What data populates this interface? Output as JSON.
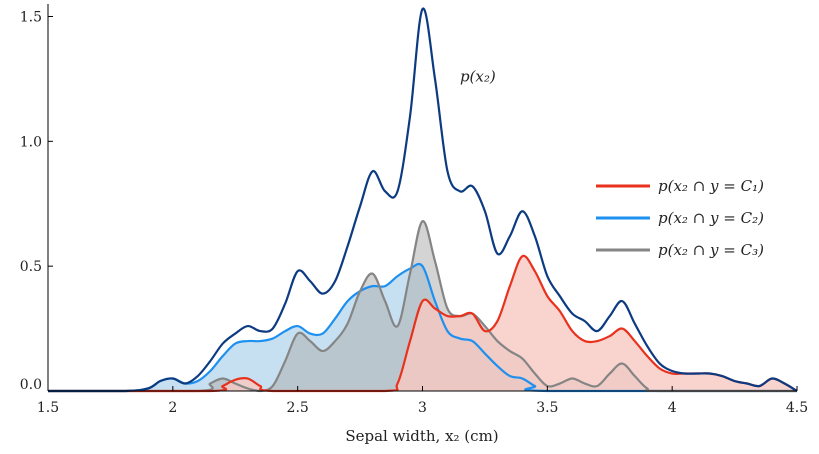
{
  "chart_data": {
    "type": "area",
    "xlabel": "Sepal width, x₂ (cm)",
    "ylabel": "",
    "xlim": [
      1.5,
      4.5
    ],
    "ylim": [
      0,
      1.55
    ],
    "xticks": [
      1.5,
      2,
      2.5,
      3,
      3.5,
      4,
      4.5
    ],
    "xtick_labels": [
      "1.5",
      "2",
      "2.5",
      "3",
      "3.5",
      "4",
      "4.5"
    ],
    "yticks": [
      0.0,
      0.5,
      1.0,
      1.5
    ],
    "ytick_labels": [
      "0.0",
      "0.5",
      "1.0",
      "1.5"
    ],
    "grid": false,
    "legend_position": "right",
    "annotation": {
      "text": "p(x₂)",
      "x": 3.15,
      "y": 1.24
    },
    "series": [
      {
        "name": "p(x₂)",
        "color": "#0d3b82",
        "filled": false,
        "points": [
          [
            1.5,
            0
          ],
          [
            1.8,
            0
          ],
          [
            1.9,
            0.01
          ],
          [
            1.95,
            0.04
          ],
          [
            2.0,
            0.05
          ],
          [
            2.05,
            0.03
          ],
          [
            2.1,
            0.06
          ],
          [
            2.15,
            0.12
          ],
          [
            2.2,
            0.19
          ],
          [
            2.25,
            0.23
          ],
          [
            2.3,
            0.26
          ],
          [
            2.35,
            0.24
          ],
          [
            2.4,
            0.25
          ],
          [
            2.45,
            0.35
          ],
          [
            2.5,
            0.48
          ],
          [
            2.55,
            0.44
          ],
          [
            2.6,
            0.39
          ],
          [
            2.65,
            0.44
          ],
          [
            2.7,
            0.58
          ],
          [
            2.75,
            0.74
          ],
          [
            2.8,
            0.88
          ],
          [
            2.85,
            0.8
          ],
          [
            2.9,
            0.8
          ],
          [
            2.95,
            1.1
          ],
          [
            3.0,
            1.53
          ],
          [
            3.05,
            1.25
          ],
          [
            3.1,
            0.88
          ],
          [
            3.15,
            0.8
          ],
          [
            3.2,
            0.82
          ],
          [
            3.25,
            0.72
          ],
          [
            3.3,
            0.55
          ],
          [
            3.35,
            0.62
          ],
          [
            3.4,
            0.72
          ],
          [
            3.45,
            0.62
          ],
          [
            3.5,
            0.46
          ],
          [
            3.55,
            0.38
          ],
          [
            3.6,
            0.31
          ],
          [
            3.65,
            0.28
          ],
          [
            3.7,
            0.24
          ],
          [
            3.75,
            0.3
          ],
          [
            3.8,
            0.36
          ],
          [
            3.85,
            0.27
          ],
          [
            3.9,
            0.18
          ],
          [
            3.95,
            0.11
          ],
          [
            4.0,
            0.08
          ],
          [
            4.05,
            0.07
          ],
          [
            4.1,
            0.07
          ],
          [
            4.15,
            0.07
          ],
          [
            4.2,
            0.06
          ],
          [
            4.25,
            0.04
          ],
          [
            4.3,
            0.03
          ],
          [
            4.35,
            0.02
          ],
          [
            4.4,
            0.05
          ],
          [
            4.45,
            0.03
          ],
          [
            4.5,
            0
          ]
        ]
      },
      {
        "name": "p(x₂ ∩ y = C₁)",
        "color": "#e8321e",
        "fill": "#f8c8c0",
        "filled": true,
        "points": [
          [
            1.5,
            0
          ],
          [
            2.15,
            0
          ],
          [
            2.2,
            0.02
          ],
          [
            2.25,
            0.045
          ],
          [
            2.3,
            0.05
          ],
          [
            2.35,
            0.02
          ],
          [
            2.4,
            0
          ],
          [
            2.85,
            0
          ],
          [
            2.9,
            0.03
          ],
          [
            2.95,
            0.2
          ],
          [
            3.0,
            0.36
          ],
          [
            3.05,
            0.33
          ],
          [
            3.1,
            0.3
          ],
          [
            3.15,
            0.3
          ],
          [
            3.2,
            0.31
          ],
          [
            3.25,
            0.24
          ],
          [
            3.3,
            0.28
          ],
          [
            3.35,
            0.42
          ],
          [
            3.4,
            0.54
          ],
          [
            3.45,
            0.48
          ],
          [
            3.5,
            0.38
          ],
          [
            3.55,
            0.32
          ],
          [
            3.6,
            0.24
          ],
          [
            3.65,
            0.2
          ],
          [
            3.7,
            0.2
          ],
          [
            3.75,
            0.22
          ],
          [
            3.8,
            0.25
          ],
          [
            3.85,
            0.2
          ],
          [
            3.9,
            0.14
          ],
          [
            3.95,
            0.09
          ],
          [
            4.0,
            0.07
          ],
          [
            4.05,
            0.07
          ],
          [
            4.1,
            0.07
          ],
          [
            4.15,
            0.07
          ],
          [
            4.2,
            0.06
          ],
          [
            4.25,
            0.04
          ],
          [
            4.3,
            0.03
          ],
          [
            4.35,
            0.02
          ],
          [
            4.4,
            0.05
          ],
          [
            4.45,
            0.03
          ],
          [
            4.5,
            0
          ]
        ]
      },
      {
        "name": "p(x₂ ∩ y = C₂)",
        "color": "#1e90f0",
        "fill": "#b8d8ee",
        "filled": true,
        "points": [
          [
            1.5,
            0
          ],
          [
            1.8,
            0
          ],
          [
            1.9,
            0.01
          ],
          [
            1.95,
            0.04
          ],
          [
            2.0,
            0.05
          ],
          [
            2.05,
            0.03
          ],
          [
            2.1,
            0.04
          ],
          [
            2.15,
            0.08
          ],
          [
            2.2,
            0.14
          ],
          [
            2.25,
            0.19
          ],
          [
            2.3,
            0.2
          ],
          [
            2.35,
            0.2
          ],
          [
            2.4,
            0.21
          ],
          [
            2.45,
            0.24
          ],
          [
            2.5,
            0.26
          ],
          [
            2.55,
            0.23
          ],
          [
            2.6,
            0.23
          ],
          [
            2.65,
            0.29
          ],
          [
            2.7,
            0.36
          ],
          [
            2.75,
            0.4
          ],
          [
            2.8,
            0.42
          ],
          [
            2.85,
            0.42
          ],
          [
            2.9,
            0.46
          ],
          [
            2.95,
            0.49
          ],
          [
            3.0,
            0.5
          ],
          [
            3.05,
            0.36
          ],
          [
            3.1,
            0.24
          ],
          [
            3.15,
            0.21
          ],
          [
            3.2,
            0.2
          ],
          [
            3.25,
            0.15
          ],
          [
            3.3,
            0.1
          ],
          [
            3.35,
            0.06
          ],
          [
            3.4,
            0.05
          ],
          [
            3.45,
            0.02
          ],
          [
            3.5,
            0
          ],
          [
            4.5,
            0
          ]
        ]
      },
      {
        "name": "p(x₂ ∩ y = C₃)",
        "color": "#858585",
        "fill": "#b0b0b0",
        "filled": true,
        "points": [
          [
            1.5,
            0
          ],
          [
            2.1,
            0
          ],
          [
            2.15,
            0.03
          ],
          [
            2.2,
            0.05
          ],
          [
            2.25,
            0.03
          ],
          [
            2.3,
            0.01
          ],
          [
            2.35,
            0
          ],
          [
            2.4,
            0.02
          ],
          [
            2.45,
            0.12
          ],
          [
            2.5,
            0.23
          ],
          [
            2.55,
            0.2
          ],
          [
            2.6,
            0.16
          ],
          [
            2.65,
            0.2
          ],
          [
            2.7,
            0.27
          ],
          [
            2.75,
            0.4
          ],
          [
            2.8,
            0.47
          ],
          [
            2.85,
            0.36
          ],
          [
            2.9,
            0.26
          ],
          [
            2.95,
            0.47
          ],
          [
            3.0,
            0.68
          ],
          [
            3.05,
            0.52
          ],
          [
            3.1,
            0.33
          ],
          [
            3.15,
            0.3
          ],
          [
            3.2,
            0.31
          ],
          [
            3.25,
            0.26
          ],
          [
            3.3,
            0.2
          ],
          [
            3.35,
            0.16
          ],
          [
            3.4,
            0.13
          ],
          [
            3.45,
            0.07
          ],
          [
            3.5,
            0.02
          ],
          [
            3.55,
            0.03
          ],
          [
            3.6,
            0.05
          ],
          [
            3.65,
            0.03
          ],
          [
            3.7,
            0.02
          ],
          [
            3.75,
            0.07
          ],
          [
            3.8,
            0.11
          ],
          [
            3.85,
            0.06
          ],
          [
            3.9,
            0.01
          ],
          [
            3.95,
            0
          ],
          [
            4.5,
            0
          ]
        ]
      }
    ]
  }
}
